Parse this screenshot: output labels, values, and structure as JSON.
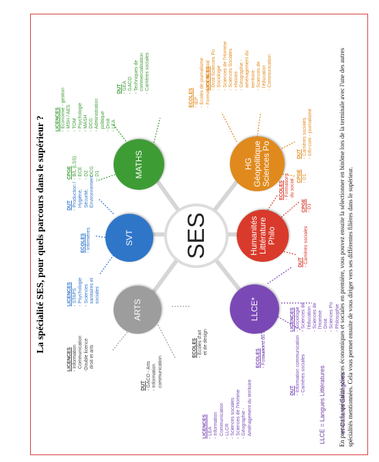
{
  "title": "La spécialité SES, pour quels parcours dans le supérieur ?",
  "footer": [
    "En prenant la spécialité sciences économiques et sociales en première, vous pouvez ensuite la sélectionner en binôme lors de la terminale avec l'une des autres",
    "spécialités mentionnées. Cela vous permet ensuite de vous diriger vers ses différentes filières dans le supérieur."
  ],
  "center": "SES",
  "nodes": {
    "arts": {
      "label": [
        "ARTS"
      ],
      "color": "#9d9d9d"
    },
    "svt": {
      "label": [
        "SVT"
      ],
      "color": "#2f76c9"
    },
    "maths": {
      "label": [
        "MATHS"
      ],
      "color": "#3e9c35"
    },
    "llce": {
      "label": [
        "LLCE*"
      ],
      "color": "#7a49b6"
    },
    "hlp": {
      "label": [
        "Humanités",
        "Littérature",
        "Philo"
      ],
      "color": "#d93a2b"
    },
    "hg": {
      "label": [
        "HG",
        "Géopolitique",
        "Sciences Po"
      ],
      "color": "#e08a1e"
    }
  },
  "blocks": {
    "arts_licences": {
      "head": "LICENCES",
      "lines": [
        "- Information",
        "  Communication",
        "-Double licence",
        "  droit et arts"
      ]
    },
    "arts_dut": {
      "head": "DUT",
      "lines": [
        "- GACO - Arts",
        "- Information",
        "  communication"
      ]
    },
    "arts_ecoles": {
      "head": "ECOLES",
      "lines": [
        "- Ecoles d'art",
        "  et de design"
      ]
    },
    "bl_licences": {
      "head": "LICENCES",
      "lines": [
        "- LEA",
        "- Information",
        "  Communication",
        "- LLCR",
        "- Sciences sociales",
        "- Sciences de l'Homme",
        "- Géographie -",
        "  Aménagement du territoire"
      ]
    },
    "bl_ecoles": {
      "head": "ECOLES",
      "lines": [
        "- Formations du social"
      ]
    },
    "bl_dut": {
      "head": "DUT",
      "lines": [
        "- Information communication",
        "- Carrières sociales"
      ]
    },
    "svt_licences": {
      "head": "LICENCES",
      "lines": [
        "- STAPS",
        "- Psychologie",
        "- Sciences",
        "  sanitaires et",
        "  sociales"
      ]
    },
    "svt_ecoles": {
      "head": "ECOLES",
      "lines": [
        "- Infirmières"
      ]
    },
    "svt_dut": {
      "head": "DUT",
      "lines": [
        "- Production /",
        "  Hygiène,",
        "  Sécurité,",
        "  Environnement"
      ]
    },
    "maths_cpge": {
      "head": "CPGE",
      "lines": [
        "- B/L (LSS)",
        "- ECE",
        "- D2",
        "- DCG",
        "- D1"
      ]
    },
    "maths_licences": {
      "head": "LICENCES",
      "lines": [
        "- Economie - gestion",
        "- MSH / AES",
        "- TOM",
        "- Psychologie",
        "- MASH",
        "- DCG",
        "- Administration",
        "  politique",
        "- Droit",
        "- LEA"
      ]
    },
    "maths_dut": {
      "head": "DUT",
      "lines": [
        "- GEA",
        "- GACO",
        "- Techniques de",
        "  commercialisation",
        "- Carrières sociales"
      ]
    },
    "llce_licences": {
      "head": "LICENCES",
      "lines": [
        "- Sociologie",
        "- Sciences de",
        "  l'éducation",
        "- Sciences de",
        "  l'Homme",
        "- Droit",
        "- Sciences Po",
        "- Philosophie"
      ]
    },
    "hlp_dut": {
      "head": "DUT",
      "lines": [
        "- Carrières sociales"
      ]
    },
    "hlp_cpge": {
      "head": "CPGE",
      "lines": [
        "- D1"
      ]
    },
    "hlp_ecoles": {
      "head": "ECOLES",
      "lines": [
        "- Formations",
        "  du social"
      ]
    },
    "hg_cpge": {
      "head": "CPGE",
      "lines": [
        "- D1"
      ]
    },
    "hg_dut": {
      "head": "DUT",
      "lines": [
        "- Carrières sociales",
        "- Info-com - journalisme"
      ]
    },
    "hg_ecoles": {
      "head": "ECOLES",
      "lines": [
        "- IEP",
        "- Ecoles de journalisme",
        "- Formations du social"
      ]
    },
    "hg_licences": {
      "head": "LICENCES",
      "lines": [
        "- Droit Sciences Po",
        "- Sociologie",
        "- Sciences de l'Homme",
        "- Sciences Sociales",
        "- Histoire",
        "- Géographie -",
        "  aménagement du",
        "  territoire",
        "- Sciences de",
        "  l'éducation",
        "- Communication"
      ]
    }
  },
  "legend": [
    "LLCE = Langues Littératures",
    "      et Cultures Etrangères"
  ]
}
